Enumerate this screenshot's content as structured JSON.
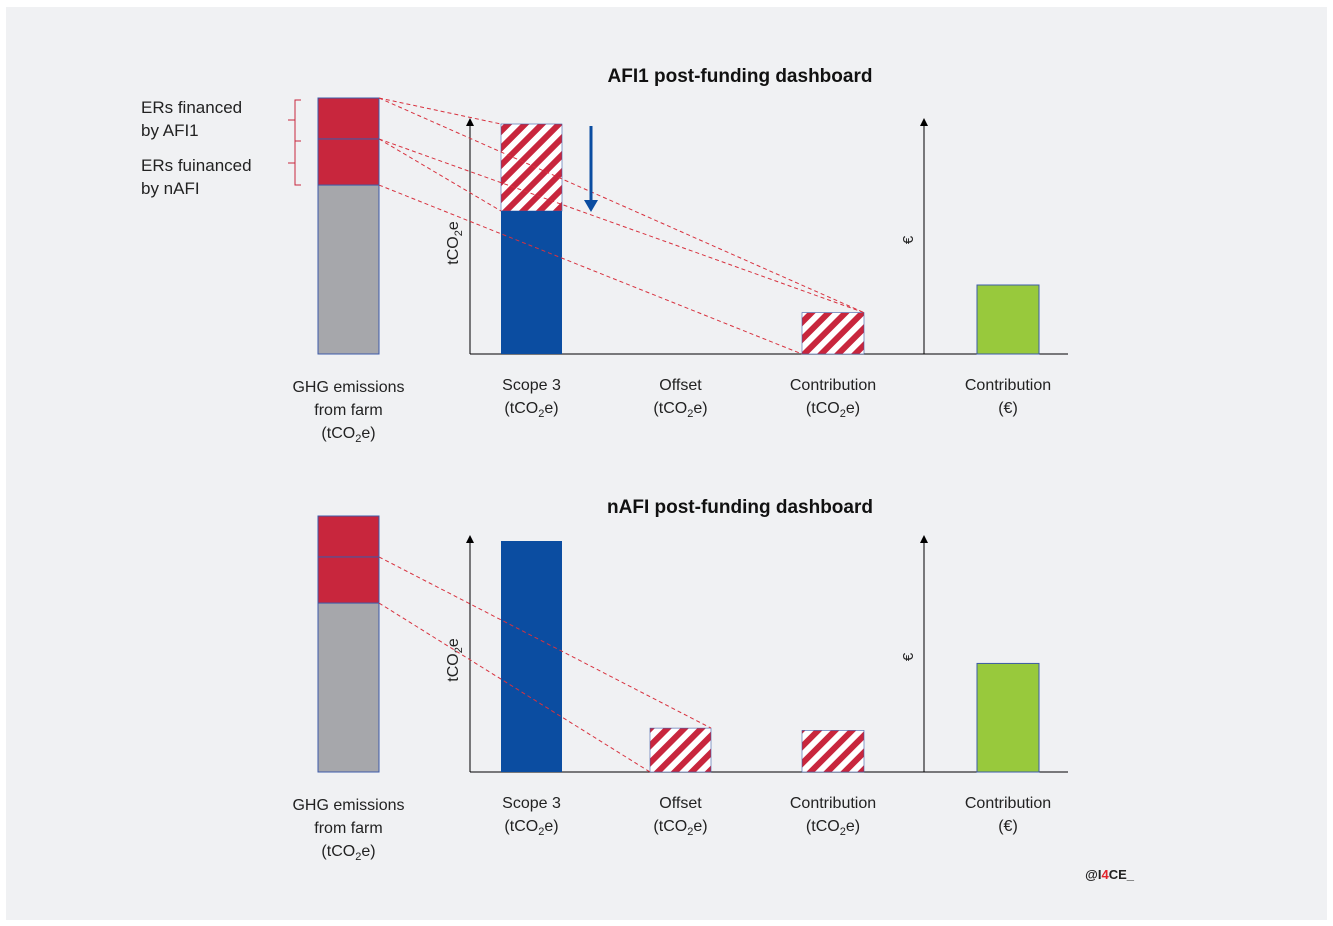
{
  "colors": {
    "background": "#f0f1f3",
    "emitted": "#a6a7ab",
    "financed": "#c8263d",
    "scope3": "#0b4da1",
    "contribution_eur": "#98c93c",
    "hatch_light": "#ffffff",
    "dashed_line": "#d8323f",
    "axis": "#000000",
    "arrow": "#0b4da1",
    "brand_red": "#e2242b"
  },
  "legend": {
    "afi1_line1": "ERs financed",
    "afi1_line2": "by AFI1",
    "nafi_line1": "ERs fuinanced",
    "nafi_line2": "by nAFI"
  },
  "axis_labels": {
    "tco2e_main": "tCO",
    "tco2e_sub": "2",
    "tco2e_tail": "e",
    "euro": "€"
  },
  "labels": {
    "ghg_line1": "GHG emissions",
    "ghg_line2": "from farm",
    "unit_open": "(tCO",
    "unit_sub": "2",
    "unit_close": "e)",
    "scope3": "Scope 3",
    "offset": "Offset",
    "contribution": "Contribution",
    "euro_unit": "(€)"
  },
  "panels": [
    {
      "title": "AFI1 post-funding dashboard",
      "farm": {
        "total": 100,
        "financed_afi1": 16,
        "financed_nafi": 18
      },
      "scope3": {
        "total": 100,
        "reduced": 38
      },
      "offset": 0,
      "contribution_tco2e": 18,
      "contribution_eur": 30,
      "shows_reduction_arrow": true
    },
    {
      "title": "nAFI post-funding dashboard",
      "farm": {
        "total": 100,
        "financed_afi1": 16,
        "financed_nafi": 18
      },
      "scope3": {
        "total": 100,
        "reduced": 0
      },
      "offset": 19,
      "contribution_tco2e": 18,
      "contribution_eur": 47,
      "shows_reduction_arrow": false
    }
  ],
  "watermark": {
    "prefix": "@I",
    "accent": "4",
    "suffix": "CE_"
  }
}
